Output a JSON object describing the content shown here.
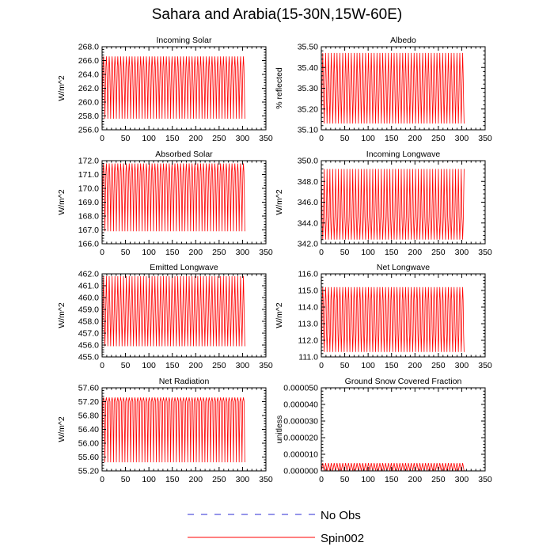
{
  "title": "Sahara and Arabia(15-30N,15W-60E)",
  "legend": [
    {
      "name": "No Obs",
      "color": "#2b2bd6",
      "dash": true
    },
    {
      "name": "Spin002",
      "color": "#ff0000",
      "dash": false
    }
  ],
  "chart_data": [
    {
      "type": "line",
      "title": "Incoming Solar",
      "ylabel": "W/m^2",
      "xlim": [
        0,
        350
      ],
      "xticks": [
        0,
        50,
        100,
        150,
        200,
        250,
        300,
        350
      ],
      "ylim": [
        256.0,
        268.0
      ],
      "yticks": [
        "256.0",
        "258.0",
        "260.0",
        "262.0",
        "264.0",
        "266.0",
        "268.0"
      ],
      "series": [
        {
          "name": "Spin002",
          "cycles": 50,
          "x_end": 305,
          "values": [
            257.6,
            262.0,
            265.1,
            266.6,
            265.1,
            262.0,
            257.6
          ]
        }
      ]
    },
    {
      "type": "line",
      "title": "Albedo",
      "ylabel": "% reflected",
      "xlim": [
        0,
        350
      ],
      "xticks": [
        0,
        50,
        100,
        150,
        200,
        250,
        300,
        350
      ],
      "ylim": [
        35.1,
        35.5
      ],
      "yticks": [
        "35.10",
        "35.20",
        "35.30",
        "35.40",
        "35.50"
      ],
      "series": [
        {
          "name": "Spin002",
          "cycles": 50,
          "x_end": 305,
          "values": [
            35.13,
            35.24,
            35.37,
            35.47,
            35.37,
            35.24,
            35.13
          ]
        }
      ]
    },
    {
      "type": "line",
      "title": "Absorbed Solar",
      "ylabel": "W/m^2",
      "xlim": [
        0,
        350
      ],
      "xticks": [
        0,
        50,
        100,
        150,
        200,
        250,
        300,
        350
      ],
      "ylim": [
        166.0,
        172.0
      ],
      "yticks": [
        "166.0",
        "167.0",
        "168.0",
        "169.0",
        "170.0",
        "171.0",
        "172.0"
      ],
      "series": [
        {
          "name": "Spin002",
          "cycles": 50,
          "x_end": 305,
          "values": [
            166.9,
            169.5,
            171.2,
            171.8,
            171.2,
            169.5,
            166.9
          ]
        }
      ]
    },
    {
      "type": "line",
      "title": "Incoming Longwave",
      "ylabel": "W/m^2",
      "xlim": [
        0,
        350
      ],
      "xticks": [
        0,
        50,
        100,
        150,
        200,
        250,
        300,
        350
      ],
      "ylim": [
        342.0,
        350.0
      ],
      "yticks": [
        "342.0",
        "344.0",
        "346.0",
        "348.0",
        "350.0"
      ],
      "series": [
        {
          "name": "Spin002",
          "cycles": 50,
          "x_end": 305,
          "values": [
            349.2,
            344.6,
            342.4,
            344.6,
            349.2
          ]
        }
      ]
    },
    {
      "type": "line",
      "title": "Emitted Longwave",
      "ylabel": "W/m^2",
      "xlim": [
        0,
        350
      ],
      "xticks": [
        0,
        50,
        100,
        150,
        200,
        250,
        300,
        350
      ],
      "ylim": [
        455.0,
        462.0
      ],
      "yticks": [
        "455.0",
        "456.0",
        "457.0",
        "458.0",
        "459.0",
        "460.0",
        "461.0",
        "462.0"
      ],
      "series": [
        {
          "name": "Spin002",
          "cycles": 50,
          "x_end": 305,
          "values": [
            455.9,
            461.8,
            455.9
          ]
        }
      ]
    },
    {
      "type": "line",
      "title": "Net Longwave",
      "ylabel": "W/m^2",
      "xlim": [
        0,
        350
      ],
      "xticks": [
        0,
        50,
        100,
        150,
        200,
        250,
        300,
        350
      ],
      "ylim": [
        111.0,
        116.0
      ],
      "yticks": [
        "111.0",
        "112.0",
        "113.0",
        "114.0",
        "115.0",
        "116.0"
      ],
      "series": [
        {
          "name": "Spin002",
          "cycles": 50,
          "x_end": 305,
          "values": [
            111.3,
            112.4,
            114.4,
            115.2,
            114.4,
            112.4,
            111.3
          ]
        }
      ]
    },
    {
      "type": "line",
      "title": "Net Radiation",
      "ylabel": "W/m^2",
      "xlim": [
        0,
        350
      ],
      "xticks": [
        0,
        50,
        100,
        150,
        200,
        250,
        300,
        350
      ],
      "ylim": [
        55.2,
        57.6
      ],
      "yticks": [
        "55.20",
        "55.60",
        "56.00",
        "56.40",
        "56.80",
        "57.20",
        "57.60"
      ],
      "series": [
        {
          "name": "Spin002",
          "cycles": 50,
          "x_end": 305,
          "values": [
            55.45,
            57.2,
            57.32,
            57.2,
            55.45
          ]
        }
      ]
    },
    {
      "type": "line",
      "title": "Ground Snow Covered Fraction",
      "ylabel": "unitless",
      "xlim": [
        0,
        350
      ],
      "xticks": [
        0,
        50,
        100,
        150,
        200,
        250,
        300,
        350
      ],
      "ylim": [
        0,
        5e-05
      ],
      "yticks": [
        "0.000000",
        "0.000010",
        "0.000020",
        "0.000030",
        "0.000040",
        "0.000050"
      ],
      "series": [
        {
          "name": "Spin002",
          "cycles": 50,
          "x_end": 305,
          "values": [
            0.0,
            4.7e-06,
            0.0
          ]
        }
      ]
    }
  ]
}
